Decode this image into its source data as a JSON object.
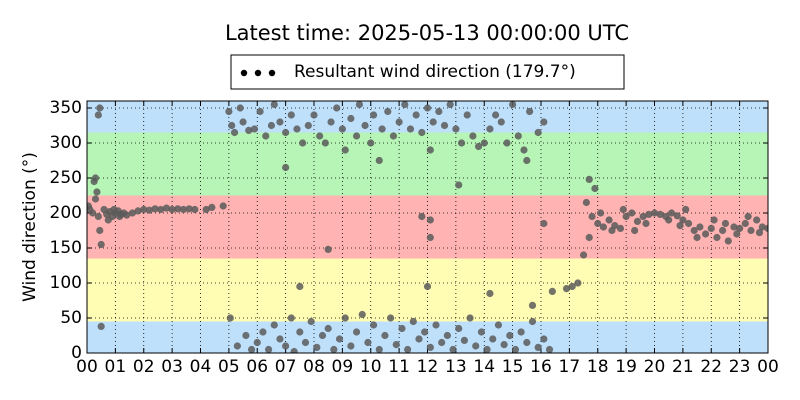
{
  "chart_data": {
    "type": "scatter",
    "title": "Latest time: 2025-05-13 00:00:00 UTC",
    "ylabel": "Wind direction (°)",
    "legend": "top",
    "grid": true,
    "bands": [
      {
        "from": 0,
        "to": 45,
        "color": "#bfe0fb"
      },
      {
        "from": 45,
        "to": 135,
        "color": "#fffcb3"
      },
      {
        "from": 135,
        "to": 225,
        "color": "#ffb3b3"
      },
      {
        "from": 225,
        "to": 315,
        "color": "#b6f5b6"
      },
      {
        "from": 315,
        "to": 360,
        "color": "#bfe0fb"
      }
    ],
    "xlim": [
      0,
      24
    ],
    "xticks": [
      {
        "value": 0,
        "label": "00"
      },
      {
        "value": 1,
        "label": "01"
      },
      {
        "value": 2,
        "label": "02"
      },
      {
        "value": 3,
        "label": "03"
      },
      {
        "value": 4,
        "label": "04"
      },
      {
        "value": 5,
        "label": "05"
      },
      {
        "value": 6,
        "label": "06"
      },
      {
        "value": 7,
        "label": "07"
      },
      {
        "value": 8,
        "label": "08"
      },
      {
        "value": 9,
        "label": "09"
      },
      {
        "value": 10,
        "label": "10"
      },
      {
        "value": 11,
        "label": "11"
      },
      {
        "value": 12,
        "label": "12"
      },
      {
        "value": 13,
        "label": "13"
      },
      {
        "value": 14,
        "label": "14"
      },
      {
        "value": 15,
        "label": "15"
      },
      {
        "value": 16,
        "label": "16"
      },
      {
        "value": 17,
        "label": "17"
      },
      {
        "value": 18,
        "label": "18"
      },
      {
        "value": 19,
        "label": "19"
      },
      {
        "value": 20,
        "label": "20"
      },
      {
        "value": 21,
        "label": "21"
      },
      {
        "value": 22,
        "label": "22"
      },
      {
        "value": 23,
        "label": "23"
      },
      {
        "value": 24,
        "label": "00"
      }
    ],
    "ylim": [
      0,
      360
    ],
    "yticks": [
      0,
      50,
      100,
      150,
      200,
      250,
      300,
      350
    ],
    "series": [
      {
        "name": "Resultant wind direction (179.7°)",
        "color": "#5a5a5a",
        "legend_color": "#000000",
        "x": [
          0.05,
          0.1,
          0.2,
          0.3,
          0.35,
          0.4,
          0.45,
          0.5,
          0.4,
          0.45,
          0.5,
          0.3,
          0.25,
          0.6,
          0.7,
          0.8,
          0.9,
          1.0,
          1.1,
          1.2,
          1.3,
          1.4,
          0.75,
          0.95,
          1.15,
          1.6,
          1.8,
          2.0,
          2.2,
          2.4,
          2.6,
          2.8,
          3.0,
          3.2,
          3.4,
          3.6,
          3.8,
          4.2,
          4.4,
          4.8,
          5.0,
          5.1,
          5.2,
          5.4,
          5.5,
          5.7,
          5.9,
          6.1,
          6.3,
          6.5,
          6.6,
          6.8,
          7.0,
          7.2,
          7.4,
          7.6,
          7.8,
          8.0,
          8.2,
          8.4,
          8.6,
          8.8,
          9.0,
          9.1,
          9.3,
          9.5,
          9.6,
          9.8,
          10.0,
          10.1,
          10.3,
          10.4,
          10.6,
          10.8,
          11.0,
          11.2,
          11.4,
          11.6,
          11.8,
          12.0,
          12.2,
          12.4,
          12.6,
          12.8,
          13.0,
          13.2,
          13.4,
          13.6,
          13.8,
          14.0,
          14.2,
          14.4,
          14.6,
          14.8,
          15.0,
          15.2,
          15.4,
          15.6,
          15.9,
          16.1,
          7.0,
          13.1,
          15.5,
          12.1,
          5.05,
          5.3,
          5.6,
          5.8,
          6.0,
          6.2,
          6.4,
          6.6,
          6.8,
          7.0,
          7.2,
          7.3,
          7.5,
          7.7,
          7.9,
          8.1,
          8.3,
          8.5,
          8.7,
          8.9,
          9.1,
          9.3,
          9.5,
          9.7,
          9.9,
          10.1,
          10.3,
          10.5,
          10.7,
          10.9,
          11.1,
          11.3,
          11.5,
          11.7,
          11.9,
          12.1,
          12.3,
          12.5,
          12.7,
          12.9,
          13.1,
          13.3,
          13.5,
          13.7,
          13.9,
          14.1,
          14.3,
          14.5,
          14.7,
          14.9,
          15.1,
          15.3,
          15.5,
          15.7,
          15.9,
          16.1,
          16.3,
          7.5,
          8.5,
          12.0,
          14.2,
          15.7,
          16.4,
          11.8,
          12.1,
          12.1,
          16.1,
          16.9,
          17.1,
          17.3,
          17.5,
          17.7,
          17.8,
          17.9,
          17.7,
          17.6,
          18.0,
          18.2,
          18.4,
          18.6,
          18.8,
          19.0,
          19.2,
          19.4,
          19.6,
          19.8,
          20.0,
          20.2,
          20.4,
          20.6,
          20.8,
          21.0,
          21.2,
          21.4,
          21.6,
          21.8,
          22.0,
          22.2,
          22.4,
          22.6,
          22.8,
          23.0,
          23.2,
          23.4,
          23.6,
          23.8,
          24.0,
          18.1,
          18.5,
          18.9,
          19.3,
          19.7,
          20.5,
          21.1,
          21.5,
          22.1,
          22.5,
          22.9,
          23.3,
          23.7,
          20.9
        ],
        "values": [
          210,
          205,
          200,
          250,
          230,
          195,
          175,
          155,
          340,
          350,
          38,
          220,
          245,
          205,
          198,
          202,
          195,
          200,
          203,
          198,
          200,
          197,
          190,
          205,
          195,
          200,
          203,
          205,
          204,
          206,
          205,
          207,
          205,
          206,
          205,
          206,
          205,
          205,
          208,
          210,
          345,
          325,
          315,
          350,
          330,
          318,
          320,
          345,
          310,
          325,
          355,
          330,
          315,
          340,
          320,
          300,
          325,
          340,
          310,
          300,
          330,
          350,
          320,
          290,
          335,
          310,
          355,
          325,
          300,
          340,
          275,
          320,
          345,
          310,
          330,
          355,
          320,
          340,
          315,
          350,
          330,
          345,
          325,
          355,
          320,
          300,
          340,
          310,
          295,
          300,
          320,
          340,
          330,
          300,
          355,
          310,
          290,
          345,
          315,
          330,
          265,
          240,
          275,
          290,
          50,
          10,
          25,
          5,
          15,
          30,
          5,
          40,
          20,
          10,
          50,
          2,
          30,
          15,
          45,
          8,
          25,
          35,
          5,
          20,
          50,
          10,
          30,
          55,
          15,
          40,
          5,
          25,
          50,
          12,
          35,
          5,
          45,
          20,
          30,
          8,
          40,
          15,
          25,
          5,
          35,
          18,
          50,
          10,
          30,
          5,
          20,
          40,
          12,
          25,
          5,
          30,
          15,
          45,
          8,
          20,
          5,
          95,
          148,
          95,
          85,
          68,
          88,
          195,
          165,
          190,
          185,
          92,
          95,
          100,
          140,
          165,
          195,
          235,
          248,
          215,
          185,
          180,
          190,
          182,
          178,
          195,
          200,
          188,
          195,
          198,
          200,
          198,
          195,
          200,
          196,
          190,
          185,
          175,
          180,
          170,
          178,
          165,
          175,
          160,
          180,
          178,
          185,
          175,
          190,
          180,
          178,
          200,
          175,
          205,
          175,
          185,
          190,
          205,
          165,
          190,
          185,
          170,
          195,
          172,
          182
        ]
      }
    ]
  }
}
